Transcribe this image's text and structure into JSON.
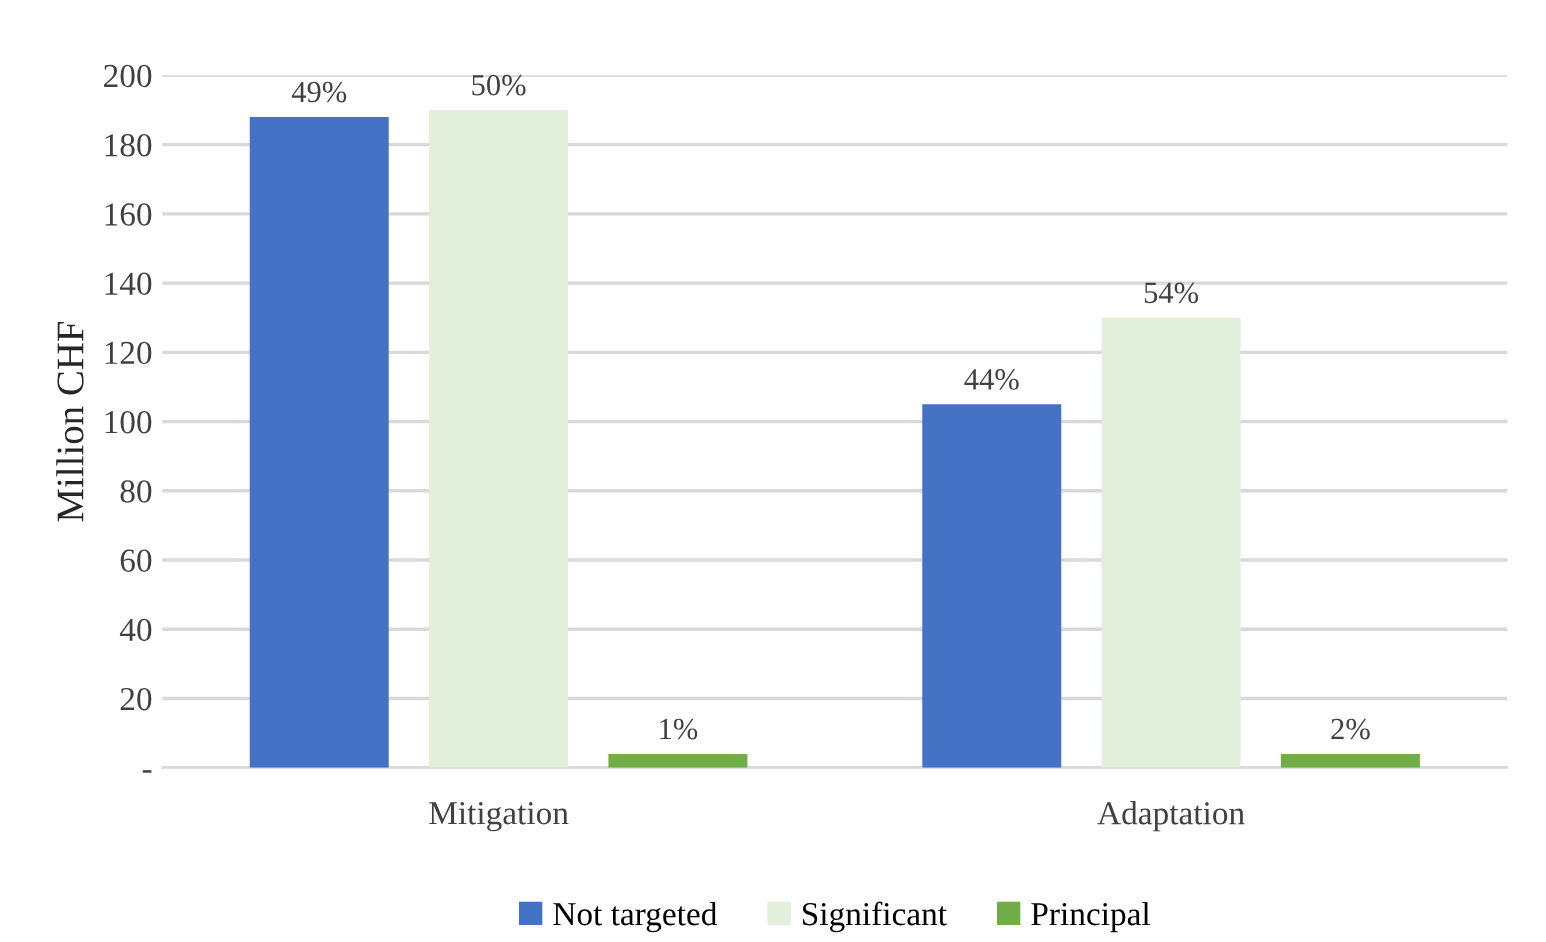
{
  "chart_data": {
    "type": "bar",
    "ylabel": "Million CHF",
    "categories": [
      "Mitigation",
      "Adaptation"
    ],
    "series": [
      {
        "name": "Not targeted",
        "color": "#4472c4",
        "values": [
          188,
          105
        ]
      },
      {
        "name": "Significant",
        "color": "#e2efda",
        "values": [
          190,
          130
        ]
      },
      {
        "name": "Principal",
        "color": "#70ad47",
        "values": [
          4,
          4
        ]
      }
    ],
    "annotations": [
      "49%",
      "50%",
      "1%",
      "44%",
      "54%",
      "2%"
    ],
    "ylim": [
      0,
      200
    ],
    "yticks": [
      {
        "value": 0,
        "label": "-"
      },
      20,
      40,
      60,
      80,
      100,
      120,
      140,
      160,
      180,
      200
    ],
    "grid": "y",
    "legend": "bottom"
  }
}
